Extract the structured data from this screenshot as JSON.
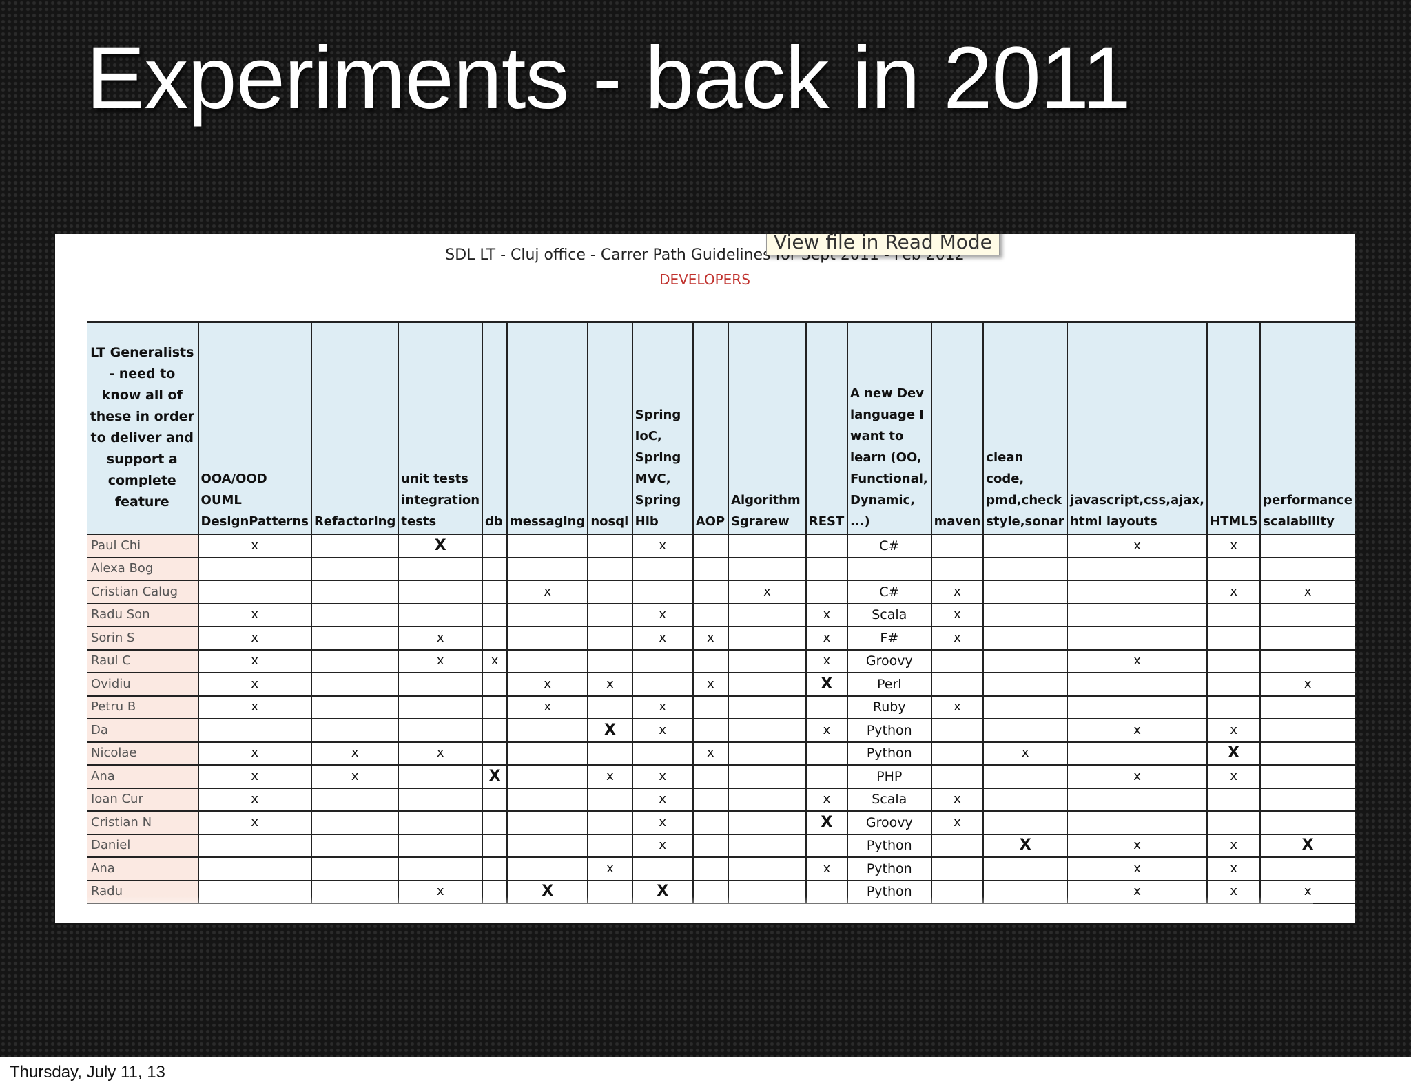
{
  "slide": {
    "title": "Experiments - back in 2011"
  },
  "document": {
    "title": "SDL LT - Cluj office - Carrer Path Guidelines for Sept 2011 - Feb 2012",
    "subtitle": "DEVELOPERS",
    "tooltip": "View file in Read Mode"
  },
  "table": {
    "columns": [
      {
        "label": "LT Generalists - need to know all of these in order to deliver and support a complete feature"
      },
      {
        "label": "OOA/OOD OUML DesignPatterns"
      },
      {
        "label": "Refactoring"
      },
      {
        "label": "unit tests integration tests"
      },
      {
        "label": "db"
      },
      {
        "label": "messaging"
      },
      {
        "label": "nosql"
      },
      {
        "label": "Spring IoC, Spring MVC, Spring Hib"
      },
      {
        "label": "AOP"
      },
      {
        "label": "Algorithm Sgrarew"
      },
      {
        "label": "REST"
      },
      {
        "label": "A new Dev language I want to learn (OO, Functional, Dynamic, ...)"
      },
      {
        "label": "maven"
      },
      {
        "label": "clean code, pmd,check style,sonar"
      },
      {
        "label": "javascript,css,ajax, html layouts"
      },
      {
        "label": "HTML5"
      },
      {
        "label": "performance scalability"
      }
    ],
    "rows": [
      {
        "name": "Paul Chi",
        "cells": [
          "x",
          "",
          "X",
          "",
          "",
          "",
          "x",
          "",
          "",
          "",
          "C#",
          "",
          "",
          "x",
          "x",
          ""
        ]
      },
      {
        "name": "Alexa Bog",
        "cells": [
          "",
          "",
          "",
          "",
          "",
          "",
          "",
          "",
          "",
          "",
          "",
          "",
          "",
          "",
          "",
          ""
        ]
      },
      {
        "name": "Cristian Calug",
        "cells": [
          "",
          "",
          "",
          "",
          "x",
          "",
          "",
          "",
          "x",
          "",
          "C#",
          "x",
          "",
          "",
          "x",
          "x"
        ]
      },
      {
        "name": "Radu Son",
        "cells": [
          "x",
          "",
          "",
          "",
          "",
          "",
          "x",
          "",
          "",
          "x",
          "Scala",
          "x",
          "",
          "",
          "",
          ""
        ]
      },
      {
        "name": "Sorin S",
        "cells": [
          "x",
          "",
          "x",
          "",
          "",
          "",
          "x",
          "x",
          "",
          "x",
          "F#",
          "x",
          "",
          "",
          "",
          ""
        ]
      },
      {
        "name": "Raul C",
        "cells": [
          "x",
          "",
          "x",
          "x",
          "",
          "",
          "",
          "",
          "",
          "x",
          "Groovy",
          "",
          "",
          "x",
          "",
          ""
        ]
      },
      {
        "name": "Ovidiu",
        "cells": [
          "x",
          "",
          "",
          "",
          "x",
          "x",
          "",
          "x",
          "",
          "X",
          "Perl",
          "",
          "",
          "",
          "",
          "x"
        ]
      },
      {
        "name": "Petru B",
        "cells": [
          "x",
          "",
          "",
          "",
          "x",
          "",
          "x",
          "",
          "",
          "",
          "Ruby",
          "x",
          "",
          "",
          "",
          ""
        ]
      },
      {
        "name": "Da",
        "cells": [
          "",
          "",
          "",
          "",
          "",
          "X",
          "x",
          "",
          "",
          "x",
          "Python",
          "",
          "",
          "x",
          "x",
          ""
        ]
      },
      {
        "name": "Nicolae",
        "cells": [
          "x",
          "x",
          "x",
          "",
          "",
          "",
          "",
          "x",
          "",
          "",
          "Python",
          "",
          "x",
          "",
          "X",
          ""
        ]
      },
      {
        "name": "Ana",
        "cells": [
          "x",
          "x",
          "",
          "X",
          "",
          "x",
          "x",
          "",
          "",
          "",
          "PHP",
          "",
          "",
          "x",
          "x",
          ""
        ]
      },
      {
        "name": "Ioan Cur",
        "cells": [
          "x",
          "",
          "",
          "",
          "",
          "",
          "x",
          "",
          "",
          "x",
          "Scala",
          "x",
          "",
          "",
          "",
          ""
        ]
      },
      {
        "name": "Cristian N",
        "cells": [
          "x",
          "",
          "",
          "",
          "",
          "",
          "x",
          "",
          "",
          "X",
          "Groovy",
          "x",
          "",
          "",
          "",
          ""
        ]
      },
      {
        "name": "Daniel",
        "cells": [
          "",
          "",
          "",
          "",
          "",
          "",
          "x",
          "",
          "",
          "",
          "Python",
          "",
          "X",
          "x",
          "x",
          "X"
        ]
      },
      {
        "name": "Ana",
        "cells": [
          "",
          "",
          "",
          "",
          "",
          "x",
          "",
          "",
          "",
          "x",
          "Python",
          "",
          "",
          "x",
          "x",
          ""
        ]
      },
      {
        "name": "Radu",
        "cells": [
          "",
          "",
          "x",
          "",
          "X",
          "",
          "X",
          "",
          "",
          "",
          "Python",
          "",
          "",
          "x",
          "x",
          "x"
        ]
      }
    ]
  },
  "footer": {
    "date": "Thursday, July 11, 13"
  }
}
